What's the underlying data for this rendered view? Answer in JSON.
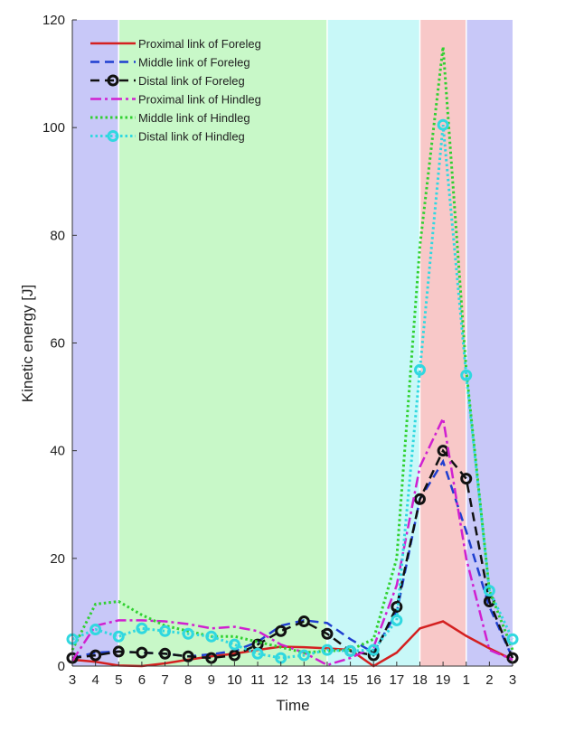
{
  "chart_data": {
    "type": "line",
    "title": "",
    "xlabel": "Time",
    "ylabel": "Kinetic energy [J]",
    "ylim": [
      0,
      120
    ],
    "yticks": [
      0,
      20,
      40,
      60,
      80,
      100,
      120
    ],
    "categories": [
      "3",
      "4",
      "5",
      "6",
      "7",
      "8",
      "9",
      "10",
      "11",
      "12",
      "13",
      "14",
      "15",
      "16",
      "17",
      "18",
      "19",
      "1",
      "2",
      "3"
    ],
    "legend_position": "top-left",
    "phases": [
      {
        "from": 0,
        "to": 2,
        "color": "#c8c8f8"
      },
      {
        "from": 2,
        "to": 11,
        "color": "#c8f8c8"
      },
      {
        "from": 11,
        "to": 15,
        "color": "#c8f8f8"
      },
      {
        "from": 15,
        "to": 17,
        "color": "#f8c8c8"
      },
      {
        "from": 17,
        "to": 19,
        "color": "#c8c8f8"
      }
    ],
    "series": [
      {
        "name": "Proximal link of Foreleg",
        "color": "#d42020",
        "style": "solid",
        "marker": false,
        "values": [
          1.2,
          0.8,
          0.1,
          0,
          0.5,
          1.2,
          1.8,
          2.3,
          3,
          3.6,
          3.5,
          3.3,
          3,
          0,
          2.5,
          7,
          8.3,
          5.6,
          3.3,
          1.2
        ]
      },
      {
        "name": "Middle link of Foreleg",
        "color": "#1f3fd0",
        "style": "dash",
        "marker": false,
        "values": [
          1.5,
          2.5,
          2.7,
          2.5,
          2.3,
          1.8,
          2.2,
          2.8,
          4.5,
          7.5,
          8.5,
          8,
          5,
          2.5,
          10,
          31,
          38,
          25,
          11,
          1.5
        ]
      },
      {
        "name": "Distal link of Foreleg",
        "color": "#111111",
        "style": "dash",
        "marker": true,
        "values": [
          1.5,
          2,
          2.7,
          2.5,
          2.3,
          1.8,
          1.5,
          2,
          4,
          6.5,
          8.3,
          6,
          2.8,
          2,
          11,
          31,
          40,
          34.8,
          12,
          1.5
        ]
      },
      {
        "name": "Proximal link of Hindleg",
        "color": "#d020d0",
        "style": "dashdot",
        "marker": false,
        "values": [
          1,
          7.5,
          8.5,
          8.5,
          8.3,
          7.8,
          7,
          7.3,
          6.5,
          4,
          2.5,
          0.2,
          1.5,
          3.5,
          15,
          37,
          46,
          20,
          3,
          1.2
        ]
      },
      {
        "name": "Middle link of Hindleg",
        "color": "#30d030",
        "style": "dot",
        "marker": false,
        "values": [
          3,
          11.5,
          12,
          9.5,
          7.5,
          6.5,
          5.5,
          5.5,
          4.5,
          3.5,
          2.5,
          2.8,
          3,
          5,
          20,
          78,
          115,
          55,
          14,
          3
        ]
      },
      {
        "name": "Distal link of Hindleg",
        "color": "#30d8e0",
        "style": "dot",
        "marker": true,
        "values": [
          5,
          6.8,
          5.5,
          7,
          6.5,
          6,
          5.5,
          4,
          2.3,
          1.5,
          2,
          3,
          2.8,
          3,
          8.5,
          55,
          100.5,
          54,
          14,
          5
        ]
      }
    ]
  }
}
